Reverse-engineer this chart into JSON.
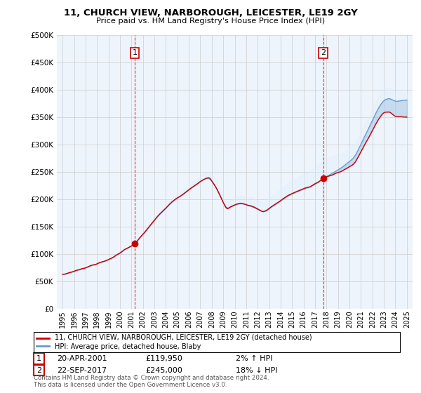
{
  "title": "11, CHURCH VIEW, NARBOROUGH, LEICESTER, LE19 2GY",
  "subtitle": "Price paid vs. HM Land Registry's House Price Index (HPI)",
  "legend_label_red": "11, CHURCH VIEW, NARBOROUGH, LEICESTER, LE19 2GY (detached house)",
  "legend_label_blue": "HPI: Average price, detached house, Blaby",
  "annotation1_num": "1",
  "annotation1_date": "20-APR-2001",
  "annotation1_price": "£119,950",
  "annotation1_hpi": "2% ↑ HPI",
  "annotation2_num": "2",
  "annotation2_date": "22-SEP-2017",
  "annotation2_price": "£245,000",
  "annotation2_hpi": "18% ↓ HPI",
  "footer": "Contains HM Land Registry data © Crown copyright and database right 2024.\nThis data is licensed under the Open Government Licence v3.0.",
  "sale1_year": 2001.3,
  "sale1_value": 119950,
  "sale2_year": 2017.72,
  "sale2_value": 245000,
  "ylim": [
    0,
    500000
  ],
  "yticks": [
    0,
    50000,
    100000,
    150000,
    200000,
    250000,
    300000,
    350000,
    400000,
    450000,
    500000
  ],
  "color_red": "#cc0000",
  "color_blue": "#6699cc",
  "fill_color": "#ddeeff",
  "color_dashed_red": "#cc0000",
  "bg_color": "#ffffff",
  "chart_bg": "#eef4fb",
  "grid_color": "#cccccc"
}
